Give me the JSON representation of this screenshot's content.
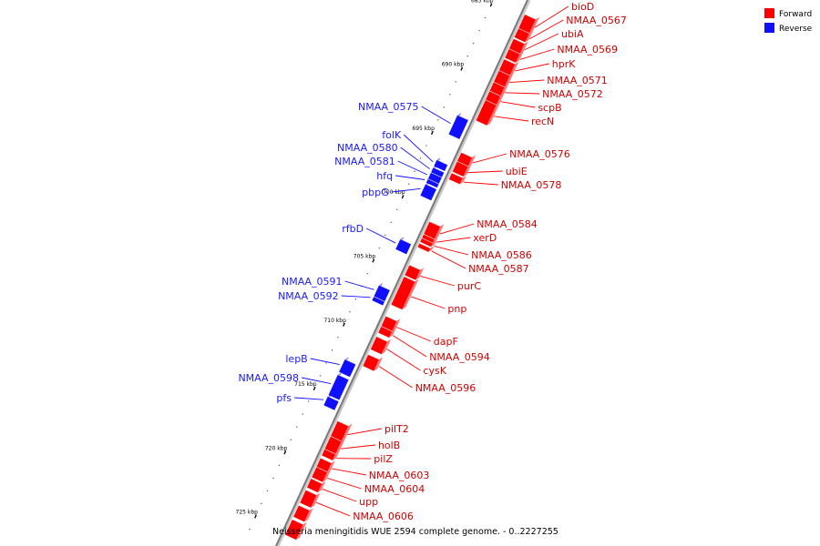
{
  "legend": {
    "forward_label": "Forward",
    "reverse_label": "Reverse",
    "forward_color": "#ff0000",
    "reverse_color": "#1010ff"
  },
  "caption": "Neisseria meningitidis WUE 2594 complete genome. - 0..2227255",
  "ticks": [
    {
      "label": "685 kbp",
      "kbp": 685
    },
    {
      "label": "690 kbp",
      "kbp": 690
    },
    {
      "label": "695 kbp",
      "kbp": 695
    },
    {
      "label": "700 kbp",
      "kbp": 700
    },
    {
      "label": "705 kbp",
      "kbp": 705
    },
    {
      "label": "710 kbp",
      "kbp": 710
    },
    {
      "label": "715 kbp",
      "kbp": 715
    },
    {
      "label": "720 kbp",
      "kbp": 720
    },
    {
      "label": "725 kbp",
      "kbp": 725
    }
  ],
  "genes": [
    {
      "name": "bioD",
      "strand": "forward",
      "start": 684.6,
      "end": 685.7
    },
    {
      "name": "NMAA_0567",
      "strand": "forward",
      "start": 685.7,
      "end": 686.4
    },
    {
      "name": "ubiA",
      "strand": "forward",
      "start": 686.5,
      "end": 687.3
    },
    {
      "name": "NMAA_0569",
      "strand": "forward",
      "start": 687.3,
      "end": 688.0
    },
    {
      "name": "hprK",
      "strand": "forward",
      "start": 688.1,
      "end": 689.0
    },
    {
      "name": "NMAA_0571",
      "strand": "forward",
      "start": 689.0,
      "end": 689.9
    },
    {
      "name": "NMAA_0572",
      "strand": "forward",
      "start": 689.9,
      "end": 690.6
    },
    {
      "name": "scpB",
      "strand": "forward",
      "start": 690.6,
      "end": 691.3
    },
    {
      "name": "recN",
      "strand": "forward",
      "start": 691.3,
      "end": 692.9
    },
    {
      "name": "NMAA_0575",
      "strand": "reverse",
      "start": 693.1,
      "end": 694.6
    },
    {
      "name": "NMAA_0576",
      "strand": "forward",
      "start": 695.4,
      "end": 696.1
    },
    {
      "name": "ubiE",
      "strand": "forward",
      "start": 696.1,
      "end": 696.9
    },
    {
      "name": "folK",
      "strand": "reverse",
      "start": 696.6,
      "end": 697.1
    },
    {
      "name": "NMAA_0578",
      "strand": "forward",
      "start": 697.0,
      "end": 697.5
    },
    {
      "name": "NMAA_0580",
      "strand": "reverse",
      "start": 697.2,
      "end": 697.6
    },
    {
      "name": "NMAA_0581",
      "strand": "reverse",
      "start": 697.6,
      "end": 698.1
    },
    {
      "name": "hfq",
      "strand": "reverse",
      "start": 698.1,
      "end": 698.4
    },
    {
      "name": "pbpG",
      "strand": "reverse",
      "start": 698.5,
      "end": 699.4
    },
    {
      "name": "NMAA_0584",
      "strand": "forward",
      "start": 700.8,
      "end": 701.8
    },
    {
      "name": "xerD",
      "strand": "forward",
      "start": 701.8,
      "end": 702.1
    },
    {
      "name": "NMAA_0586",
      "strand": "forward",
      "start": 702.1,
      "end": 702.4
    },
    {
      "name": "NMAA_0587",
      "strand": "forward",
      "start": 702.5,
      "end": 702.8
    },
    {
      "name": "rfbD",
      "strand": "reverse",
      "start": 702.8,
      "end": 703.6
    },
    {
      "name": "purC",
      "strand": "forward",
      "start": 704.2,
      "end": 705.0
    },
    {
      "name": "pnp",
      "strand": "forward",
      "start": 705.1,
      "end": 707.3
    },
    {
      "name": "NMAA_0591",
      "strand": "reverse",
      "start": 706.4,
      "end": 707.3
    },
    {
      "name": "NMAA_0592",
      "strand": "reverse",
      "start": 707.3,
      "end": 707.6
    },
    {
      "name": "dapF",
      "strand": "forward",
      "start": 708.2,
      "end": 709.0
    },
    {
      "name": "NMAA_0594",
      "strand": "forward",
      "start": 709.0,
      "end": 709.5
    },
    {
      "name": "cysK",
      "strand": "forward",
      "start": 709.8,
      "end": 710.8
    },
    {
      "name": "NMAA_0596",
      "strand": "forward",
      "start": 711.2,
      "end": 712.1
    },
    {
      "name": "lepB",
      "strand": "reverse",
      "start": 712.2,
      "end": 713.2
    },
    {
      "name": "NMAA_0598",
      "strand": "reverse",
      "start": 713.4,
      "end": 715.0
    },
    {
      "name": "pfs",
      "strand": "reverse",
      "start": 715.1,
      "end": 715.8
    },
    {
      "name": "pilT2",
      "strand": "forward",
      "start": 716.4,
      "end": 717.6
    },
    {
      "name": "holB",
      "strand": "forward",
      "start": 717.6,
      "end": 718.6
    },
    {
      "name": "pilZ",
      "strand": "forward",
      "start": 718.6,
      "end": 719.1
    },
    {
      "name": "NMAA_0603",
      "strand": "forward",
      "start": 719.3,
      "end": 720.0
    },
    {
      "name": "NMAA_0604",
      "strand": "forward",
      "start": 720.0,
      "end": 720.8
    },
    {
      "name": "upp",
      "strand": "forward",
      "start": 720.9,
      "end": 721.6
    },
    {
      "name": "NMAA_0606",
      "strand": "forward",
      "start": 721.8,
      "end": 722.8
    },
    {
      "name": "",
      "strand": "forward",
      "start": 723.0,
      "end": 723.9
    },
    {
      "name": "",
      "strand": "forward",
      "start": 724.1,
      "end": 725.3
    }
  ]
}
